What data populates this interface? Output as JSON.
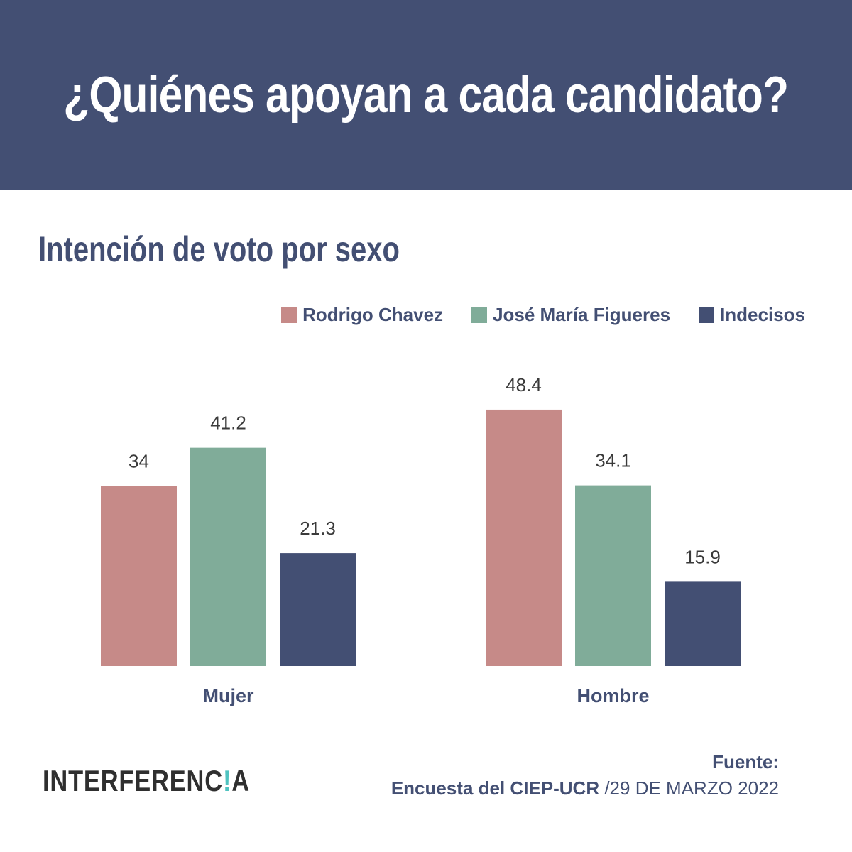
{
  "header": {
    "title": "¿Quiénes apoyan a cada candidato?"
  },
  "subtitle": "Intención de voto por sexo",
  "colors": {
    "banner": "#434f73",
    "text": "#434f73",
    "series": [
      "#c68a88",
      "#80ac99",
      "#434f73"
    ]
  },
  "chart_data": {
    "type": "bar",
    "categories": [
      "Mujer",
      "Hombre"
    ],
    "series": [
      {
        "name": "Rodrigo Chavez",
        "values": [
          34,
          48.4
        ]
      },
      {
        "name": "José María Figueres",
        "values": [
          41.2,
          34.1
        ]
      },
      {
        "name": "Indecisos",
        "values": [
          21.3,
          15.9
        ]
      }
    ],
    "value_labels": [
      [
        "34",
        "48.4"
      ],
      [
        "41.2",
        "34.1"
      ],
      [
        "21.3",
        "15.9"
      ]
    ],
    "ylim": [
      0,
      60
    ],
    "grid": false,
    "legend": "top-right",
    "title": "",
    "xlabel": "",
    "ylabel": ""
  },
  "footer": {
    "logo": {
      "prefix": "INTERFERENC",
      "mark": "!",
      "suffix": "A"
    },
    "source_label": "Fuente:",
    "source_org": "Encuesta del CIEP-UCR",
    "source_date": " /29 DE MARZO 2022"
  }
}
